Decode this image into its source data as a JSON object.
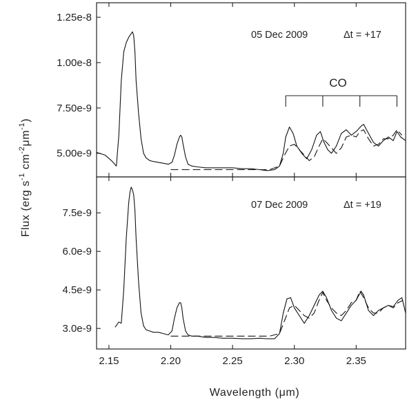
{
  "chart_data": [
    {
      "type": "line",
      "panel": "top",
      "annotation": {
        "date": "05 Dec 2009",
        "delta": "Δt = +17"
      },
      "co_label": "CO",
      "co_bandheads": [
        2.293,
        2.323,
        2.353,
        2.383
      ],
      "xlim": [
        2.14,
        2.39
      ],
      "ylim": [
        3.7e-09,
        1.33e-08
      ],
      "yticks": [
        5e-09,
        7.5e-09,
        1e-08,
        1.25e-08
      ],
      "ytick_labels": [
        "5.00e-9",
        "7.50e-9",
        "1.00e-8",
        "1.25e-8"
      ],
      "series": [
        {
          "style": "solid",
          "x": [
            2.14,
            2.147,
            2.152,
            2.156,
            2.158,
            2.16,
            2.162,
            2.164,
            2.166,
            2.168,
            2.169,
            2.17,
            2.171,
            2.172,
            2.174,
            2.176,
            2.178,
            2.18,
            2.183,
            2.186,
            2.19,
            2.194,
            2.198,
            2.201,
            2.203,
            2.205,
            2.207,
            2.208,
            2.209,
            2.21,
            2.212,
            2.214,
            2.217,
            2.222,
            2.228,
            2.235,
            2.242,
            2.25,
            2.258,
            2.265,
            2.272,
            2.278,
            2.284,
            2.288,
            2.291,
            2.293,
            2.296,
            2.299,
            2.302,
            2.306,
            2.31,
            2.314,
            2.318,
            2.321,
            2.324,
            2.327,
            2.33,
            2.334,
            2.338,
            2.342,
            2.346,
            2.35,
            2.354,
            2.356,
            2.36,
            2.364,
            2.368,
            2.372,
            2.376,
            2.38,
            2.383,
            2.386,
            2.39
          ],
          "y": [
            5.05e-09,
            4.9e-09,
            4.6e-09,
            4.3e-09,
            6e-09,
            9e-09,
            1.06e-08,
            1.11e-08,
            1.14e-08,
            1.16e-08,
            1.17e-08,
            1.15e-08,
            1.06e-08,
            9e-09,
            7.2e-09,
            5.8e-09,
            5e-09,
            4.75e-09,
            4.6e-09,
            4.55e-09,
            4.5e-09,
            4.45e-09,
            4.4e-09,
            4.5e-09,
            4.9e-09,
            5.5e-09,
            5.9e-09,
            6e-09,
            5.9e-09,
            5.5e-09,
            4.8e-09,
            4.4e-09,
            4.3e-09,
            4.25e-09,
            4.2e-09,
            4.2e-09,
            4.2e-09,
            4.2e-09,
            4.15e-09,
            4.15e-09,
            4.1e-09,
            4.05e-09,
            4.1e-09,
            4.3e-09,
            5e-09,
            5.9e-09,
            6.45e-09,
            6.1e-09,
            5.4e-09,
            5e-09,
            4.7e-09,
            5.2e-09,
            6e-09,
            6.2e-09,
            5.6e-09,
            5.2e-09,
            5e-09,
            5.4e-09,
            6.1e-09,
            6.3e-09,
            6e-09,
            6.2e-09,
            6.5e-09,
            6.6e-09,
            6.1e-09,
            5.6e-09,
            5.4e-09,
            5.7e-09,
            5.9e-09,
            5.7e-09,
            6.2e-09,
            5.9e-09,
            5.7e-09
          ]
        },
        {
          "style": "dashed",
          "x": [
            2.2,
            2.24,
            2.28,
            2.288,
            2.292,
            2.296,
            2.3,
            2.304,
            2.308,
            2.312,
            2.316,
            2.32,
            2.323,
            2.326,
            2.33,
            2.334,
            2.338,
            2.342,
            2.346,
            2.35,
            2.353,
            2.356,
            2.36,
            2.364,
            2.368,
            2.372,
            2.376,
            2.38,
            2.383,
            2.387
          ],
          "y": [
            4.1e-09,
            4.1e-09,
            4.1e-09,
            4.3e-09,
            4.9e-09,
            5.4e-09,
            5.5e-09,
            5.2e-09,
            4.9e-09,
            4.6e-09,
            4.8e-09,
            5.4e-09,
            5.8e-09,
            5.6e-09,
            5.3e-09,
            5e-09,
            5.3e-09,
            5.9e-09,
            6e-09,
            5.9e-09,
            6.2e-09,
            6.3e-09,
            5.8e-09,
            5.4e-09,
            5.5e-09,
            5.8e-09,
            5.8e-09,
            6e-09,
            6.3e-09,
            6e-09
          ]
        }
      ]
    },
    {
      "type": "line",
      "panel": "bottom",
      "annotation": {
        "date": "07 Dec 2009",
        "delta": "Δt = +19"
      },
      "xlim": [
        2.14,
        2.39
      ],
      "ylim": [
        2.2e-09,
        8.9e-09
      ],
      "yticks": [
        3e-09,
        4.5e-09,
        6e-09,
        7.5e-09
      ],
      "ytick_labels": [
        "3.0e-9",
        "4.5e-9",
        "6.0e-9",
        "7.5e-9"
      ],
      "xticks": [
        2.15,
        2.2,
        2.25,
        2.3,
        2.35
      ],
      "xtick_labels": [
        "2.15",
        "2.20",
        "2.25",
        "2.30",
        "2.35"
      ],
      "series": [
        {
          "style": "solid",
          "x": [
            2.155,
            2.158,
            2.16,
            2.162,
            2.164,
            2.166,
            2.167,
            2.168,
            2.169,
            2.17,
            2.171,
            2.172,
            2.174,
            2.176,
            2.178,
            2.18,
            2.183,
            2.186,
            2.19,
            2.194,
            2.198,
            2.201,
            2.203,
            2.205,
            2.207,
            2.208,
            2.209,
            2.21,
            2.212,
            2.214,
            2.217,
            2.222,
            2.228,
            2.235,
            2.242,
            2.25,
            2.258,
            2.265,
            2.272,
            2.278,
            2.284,
            2.288,
            2.291,
            2.294,
            2.297,
            2.3,
            2.304,
            2.308,
            2.312,
            2.316,
            2.32,
            2.323,
            2.326,
            2.33,
            2.334,
            2.338,
            2.342,
            2.346,
            2.35,
            2.354,
            2.356,
            2.36,
            2.364,
            2.368,
            2.372,
            2.376,
            2.38,
            2.384,
            2.387,
            2.39
          ],
          "y": [
            3.05e-09,
            3.25e-09,
            3.2e-09,
            4.5e-09,
            6.5e-09,
            7.9e-09,
            8.3e-09,
            8.5e-09,
            8.4e-09,
            8.2e-09,
            7.6e-09,
            6.5e-09,
            4.8e-09,
            3.6e-09,
            3.1e-09,
            2.95e-09,
            2.9e-09,
            2.85e-09,
            2.85e-09,
            2.8e-09,
            2.75e-09,
            2.9e-09,
            3.4e-09,
            3.8e-09,
            4e-09,
            4e-09,
            3.8e-09,
            3.4e-09,
            2.9e-09,
            2.75e-09,
            2.7e-09,
            2.7e-09,
            2.65e-09,
            2.65e-09,
            2.62e-09,
            2.62e-09,
            2.6e-09,
            2.6e-09,
            2.62e-09,
            2.6e-09,
            2.6e-09,
            2.8e-09,
            3.6e-09,
            4.15e-09,
            4.2e-09,
            3.8e-09,
            3.5e-09,
            3.2e-09,
            3.5e-09,
            3.9e-09,
            4.3e-09,
            4.45e-09,
            4.2e-09,
            3.7e-09,
            3.4e-09,
            3.3e-09,
            3.6e-09,
            3.9e-09,
            4.1e-09,
            4.45e-09,
            4.3e-09,
            3.7e-09,
            3.5e-09,
            3.7e-09,
            3.8e-09,
            3.9e-09,
            3.85e-09,
            4.1e-09,
            4.2e-09,
            3.6e-09
          ]
        },
        {
          "style": "dashed",
          "x": [
            2.2,
            2.24,
            2.28,
            2.288,
            2.292,
            2.296,
            2.3,
            2.304,
            2.308,
            2.312,
            2.316,
            2.32,
            2.323,
            2.326,
            2.33,
            2.334,
            2.338,
            2.342,
            2.346,
            2.35,
            2.353,
            2.356,
            2.36,
            2.364,
            2.368,
            2.372,
            2.376,
            2.38,
            2.384,
            2.388
          ],
          "y": [
            2.7e-09,
            2.7e-09,
            2.7e-09,
            2.8e-09,
            3.3e-09,
            3.8e-09,
            3.9e-09,
            3.7e-09,
            3.5e-09,
            3.4e-09,
            3.6e-09,
            4.1e-09,
            4.4e-09,
            4.1e-09,
            3.8e-09,
            3.6e-09,
            3.5e-09,
            3.7e-09,
            4e-09,
            4.1e-09,
            4.45e-09,
            4.2e-09,
            3.8e-09,
            3.6e-09,
            3.6e-09,
            3.8e-09,
            3.9e-09,
            3.8e-09,
            4e-09,
            4.1e-09
          ]
        }
      ]
    }
  ],
  "xlabel": "Wavelength (μm)",
  "ylabel": {
    "main": "Flux (erg s",
    "exp1": "-1",
    "mid1": " cm",
    "exp2": "-2",
    "mid2": "μm",
    "exp3": "-1",
    "end": ")"
  }
}
